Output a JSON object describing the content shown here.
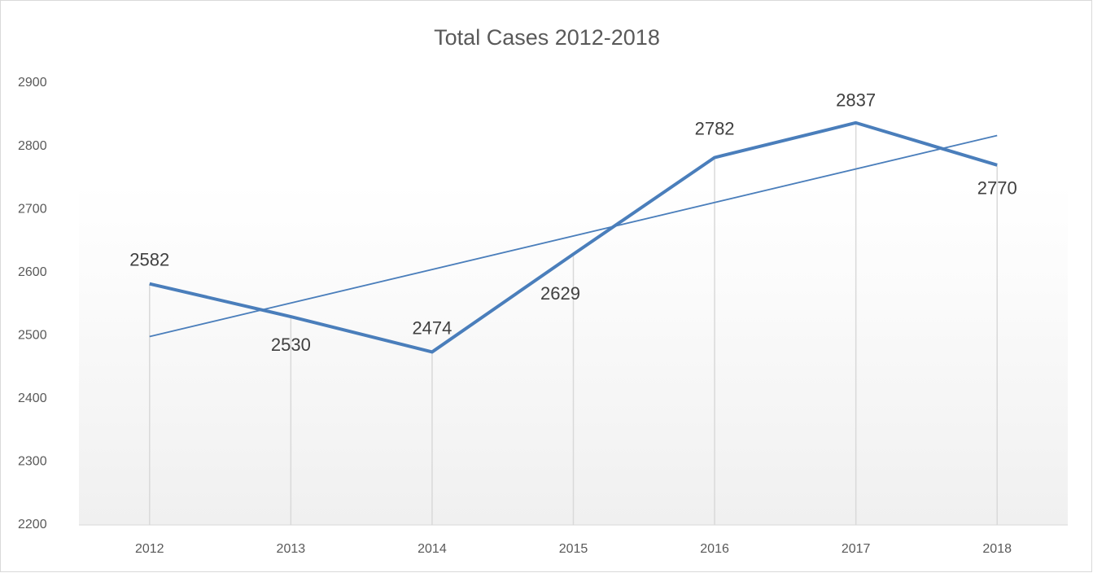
{
  "chart_data": {
    "type": "line",
    "title": "Total Cases 2012-2018",
    "categories": [
      "2012",
      "2013",
      "2014",
      "2015",
      "2016",
      "2017",
      "2018"
    ],
    "values": [
      2582,
      2530,
      2474,
      2629,
      2782,
      2837,
      2770
    ],
    "color": "#4a7ebb",
    "ylim": [
      2200,
      2900
    ],
    "yticks": [
      2200,
      2300,
      2400,
      2500,
      2600,
      2700,
      2800,
      2900
    ],
    "drop_lines": true,
    "trendline": "linear",
    "data_labels": true
  }
}
